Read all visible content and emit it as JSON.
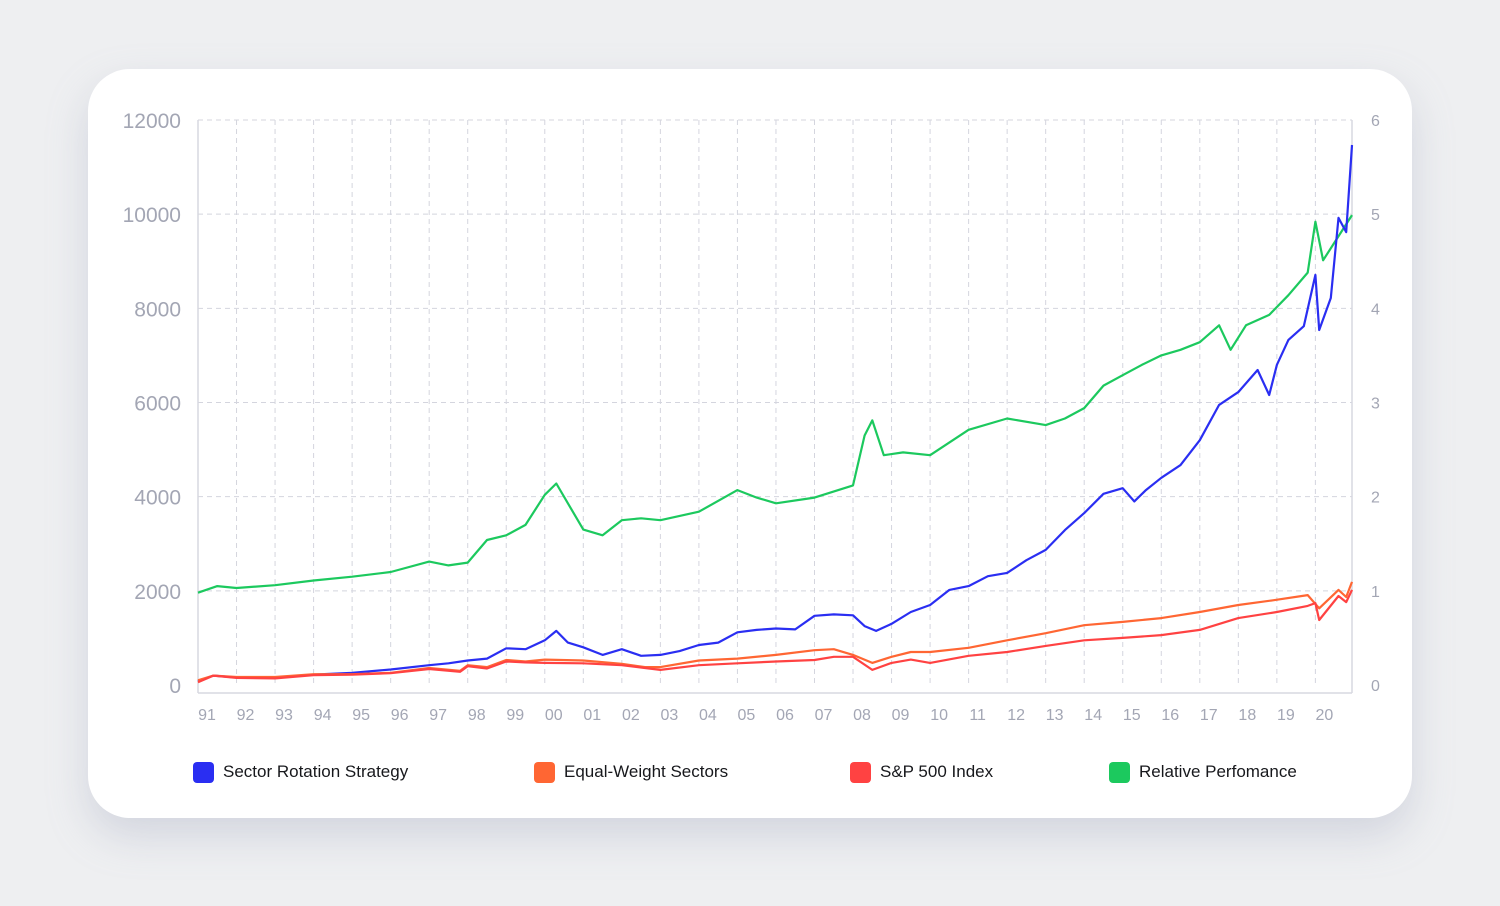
{
  "chart_data": {
    "type": "line",
    "title": "",
    "xlabel": "",
    "ylabel": "",
    "x_range": [
      1991.0,
      2020.95
    ],
    "ylim_left": [
      0,
      12000
    ],
    "ylim_right": [
      0,
      6
    ],
    "grid": true,
    "legend_position": "bottom",
    "x_tick_labels": [
      "91",
      "92",
      "93",
      "94",
      "95",
      "96",
      "97",
      "98",
      "99",
      "00",
      "01",
      "02",
      "03",
      "04",
      "05",
      "06",
      "07",
      "08",
      "09",
      "10",
      "11",
      "12",
      "13",
      "14",
      "15",
      "16",
      "17",
      "18",
      "19",
      "20"
    ],
    "y_left_tick_labels": [
      "0",
      "2000",
      "4000",
      "6000",
      "8000",
      "10000",
      "12000"
    ],
    "y_right_tick_labels": [
      "0",
      "1",
      "2",
      "3",
      "4",
      "5",
      "6"
    ],
    "series": [
      {
        "name": "Sector Rotation Strategy",
        "color": "#2a2ef2",
        "axis": "left",
        "x": [
          1991,
          1991.4,
          1992,
          1993,
          1994,
          1995,
          1996,
          1997,
          1997.5,
          1998,
          1998.5,
          1999,
          1999.5,
          2000,
          2000.3,
          2000.6,
          2001,
          2001.5,
          2002,
          2002.5,
          2003,
          2003.5,
          2004,
          2004.5,
          2005,
          2005.5,
          2006,
          2006.5,
          2007,
          2007.5,
          2008,
          2008.3,
          2008.6,
          2009,
          2009.5,
          2010,
          2010.5,
          2011,
          2011.5,
          2012,
          2012.5,
          2013,
          2013.5,
          2014,
          2014.5,
          2015,
          2015.3,
          2015.6,
          2016,
          2016.5,
          2017,
          2017.5,
          2018,
          2018.5,
          2018.8,
          2019,
          2019.3,
          2019.7,
          2020,
          2020.1,
          2020.4,
          2020.6,
          2020.8,
          2020.95
        ],
        "values": [
          80,
          200,
          160,
          150,
          220,
          260,
          330,
          420,
          460,
          520,
          560,
          780,
          760,
          950,
          1150,
          900,
          800,
          640,
          760,
          620,
          640,
          720,
          850,
          900,
          1120,
          1170,
          1200,
          1180,
          1470,
          1500,
          1480,
          1250,
          1150,
          1300,
          1550,
          1700,
          2020,
          2100,
          2310,
          2380,
          2650,
          2870,
          3290,
          3650,
          4060,
          4180,
          3900,
          4140,
          4400,
          4670,
          5200,
          5950,
          6220,
          6690,
          6160,
          6800,
          7330,
          7620,
          8710,
          7540,
          8220,
          9920,
          9620,
          11470
        ]
      },
      {
        "name": "Equal-Weight Sectors",
        "color": "#ff6633",
        "axis": "left",
        "x": [
          1991,
          1991.4,
          1992,
          1993,
          1994,
          1995,
          1996,
          1997,
          1997.8,
          1998,
          1998.5,
          1999,
          1999.5,
          2000,
          2001,
          2002,
          2002.6,
          2003,
          2004,
          2005,
          2006,
          2007,
          2007.5,
          2008,
          2008.5,
          2009,
          2009.5,
          2010,
          2011,
          2012,
          2013,
          2014,
          2015,
          2016,
          2017,
          2018,
          2018.9,
          2019.8,
          2020.1,
          2020.6,
          2020.8,
          2020.95
        ],
        "values": [
          100,
          200,
          170,
          170,
          230,
          230,
          260,
          360,
          300,
          420,
          380,
          530,
          500,
          540,
          520,
          450,
          380,
          380,
          520,
          560,
          640,
          740,
          760,
          640,
          470,
          600,
          700,
          700,
          790,
          950,
          1100,
          1270,
          1340,
          1420,
          1550,
          1700,
          1800,
          1910,
          1630,
          2020,
          1870,
          2190
        ]
      },
      {
        "name": "S&P 500 Index",
        "color": "#ff4242",
        "axis": "left",
        "x": [
          1991,
          1991.4,
          1992,
          1993,
          1994,
          1995,
          1996,
          1997,
          1997.8,
          1998,
          1998.5,
          1999,
          1999.5,
          2000,
          2001,
          2002,
          2002.6,
          2003,
          2004,
          2005,
          2006,
          2007,
          2007.5,
          2008,
          2008.5,
          2009,
          2009.5,
          2010,
          2011,
          2012,
          2013,
          2014,
          2015,
          2016,
          2017,
          2018,
          2019,
          2019.8,
          2020,
          2020.1,
          2020.6,
          2020.8,
          2020.95
        ],
        "values": [
          60,
          200,
          150,
          140,
          210,
          220,
          250,
          340,
          280,
          400,
          350,
          500,
          480,
          470,
          460,
          420,
          360,
          320,
          420,
          460,
          500,
          530,
          600,
          600,
          320,
          470,
          540,
          470,
          620,
          700,
          830,
          950,
          1000,
          1060,
          1170,
          1420,
          1550,
          1680,
          1740,
          1380,
          1890,
          1760,
          2020
        ]
      },
      {
        "name": "Relative Perfomance",
        "color": "#1cc95e",
        "axis": "right",
        "x": [
          1991,
          1991.5,
          1992,
          1993,
          1994,
          1995,
          1996,
          1997,
          1997.5,
          1998,
          1998.5,
          1999,
          1999.5,
          2000,
          2000.3,
          2001,
          2001.5,
          2002,
          2002.5,
          2003,
          2004,
          2005,
          2005.5,
          2006,
          2007,
          2008,
          2008.3,
          2008.5,
          2008.8,
          2009.3,
          2010,
          2011,
          2012,
          2013,
          2013.5,
          2014,
          2014.5,
          2015,
          2015.5,
          2016,
          2016.5,
          2017,
          2017.5,
          2017.8,
          2018.2,
          2018.8,
          2019.3,
          2019.8,
          2020,
          2020.2,
          2020.95
        ],
        "values": [
          0.98,
          1.05,
          1.03,
          1.06,
          1.11,
          1.15,
          1.2,
          1.31,
          1.27,
          1.3,
          1.54,
          1.59,
          1.7,
          2.02,
          2.14,
          1.65,
          1.59,
          1.75,
          1.77,
          1.75,
          1.84,
          2.07,
          1.99,
          1.93,
          1.99,
          2.12,
          2.65,
          2.81,
          2.44,
          2.47,
          2.44,
          2.71,
          2.83,
          2.76,
          2.83,
          2.94,
          3.18,
          3.29,
          3.4,
          3.5,
          3.56,
          3.64,
          3.82,
          3.56,
          3.82,
          3.93,
          4.14,
          4.38,
          4.92,
          4.51,
          4.99
        ]
      }
    ]
  }
}
